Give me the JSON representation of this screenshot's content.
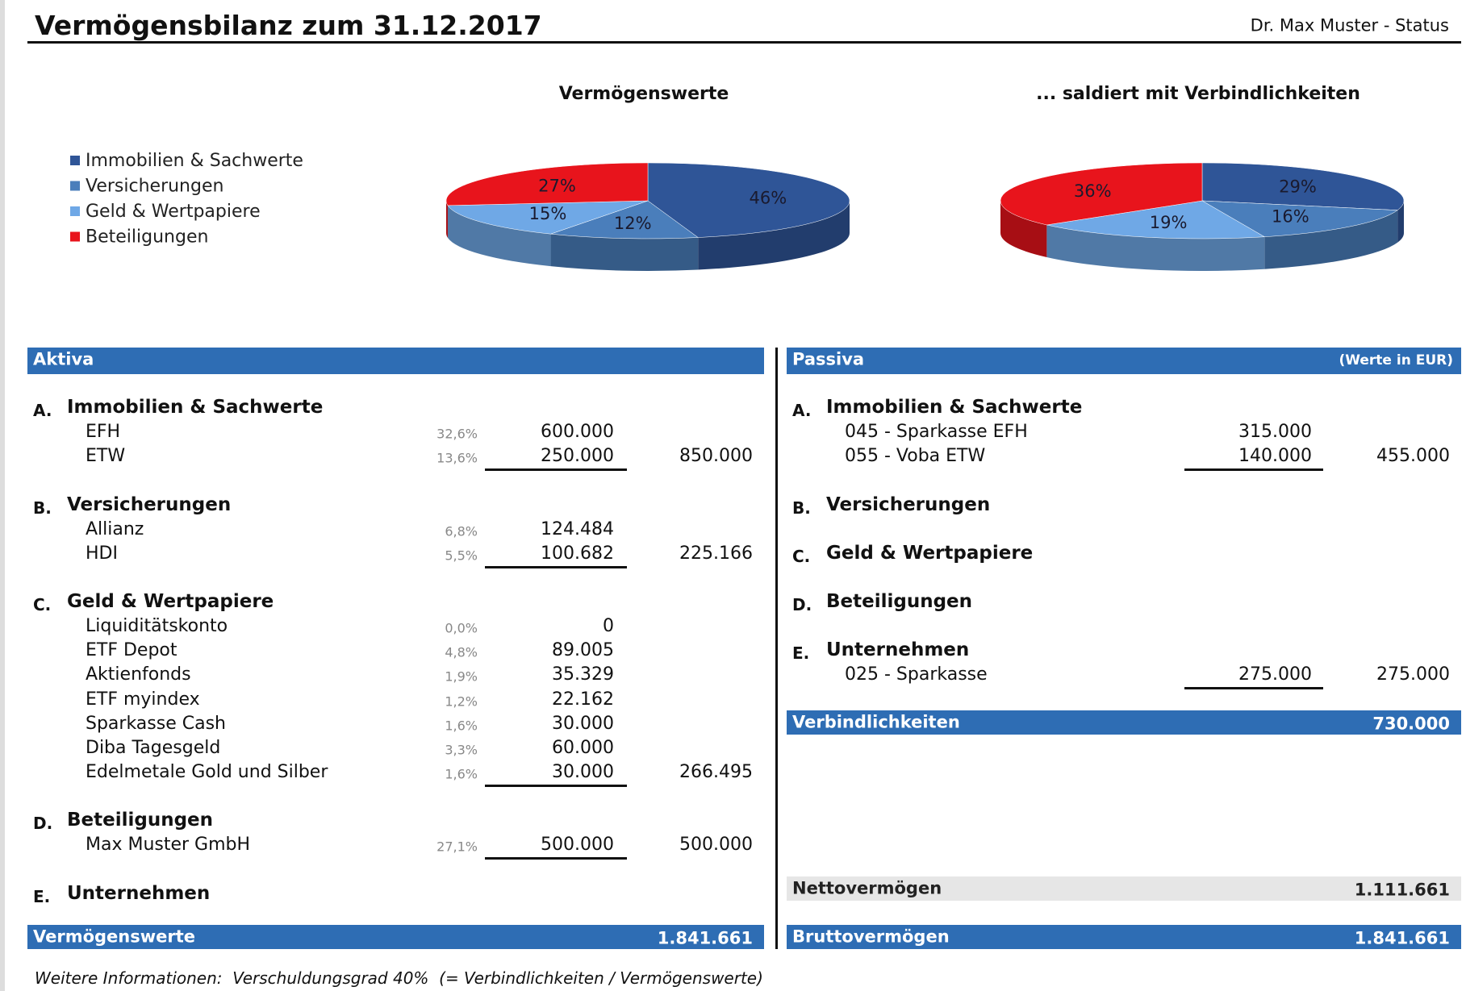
{
  "header": {
    "title": "Vermögensbilanz zum 31.12.2017",
    "subtitle": "Dr. Max Muster - Status"
  },
  "chart_data": [
    {
      "type": "pie",
      "title": "Vermögenswerte",
      "categories": [
        "Immobilien & Sachwerte",
        "Versicherungen",
        "Geld & Wertpapiere",
        "Beteiligungen"
      ],
      "values": [
        46,
        12,
        15,
        27
      ],
      "value_labels": [
        "46%",
        "12%",
        "15%",
        "27%"
      ],
      "colors": [
        "#2f5597",
        "#4a7ebb",
        "#6fa8e6",
        "#e8141c"
      ]
    },
    {
      "type": "pie",
      "title": "... saldiert mit Verbindlichkeiten",
      "values": [
        29,
        16,
        19,
        36
      ],
      "value_labels": [
        "29%",
        "16%",
        "19%",
        "36%"
      ],
      "colors": [
        "#2f5597",
        "#4a7ebb",
        "#6fa8e6",
        "#e8141c"
      ]
    }
  ],
  "aktiva": {
    "title": "Aktiva",
    "sections": [
      {
        "letter": "A.",
        "name": "Immobilien & Sachwerte",
        "items": [
          {
            "name": "EFH",
            "pct": "32,6%",
            "amount": "600.000"
          },
          {
            "name": "ETW",
            "pct": "13,6%",
            "amount": "250.000"
          }
        ],
        "total": "850.000"
      },
      {
        "letter": "B.",
        "name": "Versicherungen",
        "items": [
          {
            "name": "Allianz",
            "pct": "6,8%",
            "amount": "124.484"
          },
          {
            "name": "HDI",
            "pct": "5,5%",
            "amount": "100.682"
          }
        ],
        "total": "225.166"
      },
      {
        "letter": "C.",
        "name": "Geld & Wertpapiere",
        "items": [
          {
            "name": "Liquiditätskonto",
            "pct": "0,0%",
            "amount": "0"
          },
          {
            "name": "ETF Depot",
            "pct": "4,8%",
            "amount": "89.005"
          },
          {
            "name": "Aktienfonds",
            "pct": "1,9%",
            "amount": "35.329"
          },
          {
            "name": "ETF myindex",
            "pct": "1,2%",
            "amount": "22.162"
          },
          {
            "name": "Sparkasse Cash",
            "pct": "1,6%",
            "amount": "30.000"
          },
          {
            "name": "Diba Tagesgeld",
            "pct": "3,3%",
            "amount": "60.000"
          },
          {
            "name": "Edelmetale Gold und Silber",
            "pct": "1,6%",
            "amount": "30.000"
          }
        ],
        "total": "266.495"
      },
      {
        "letter": "D.",
        "name": "Beteiligungen",
        "items": [
          {
            "name": "Max Muster GmbH",
            "pct": "27,1%",
            "amount": "500.000"
          }
        ],
        "total": "500.000"
      },
      {
        "letter": "E.",
        "name": "Unternehmen",
        "items": []
      }
    ],
    "sum_label": "Vermögenswerte",
    "sum": "1.841.661"
  },
  "passiva": {
    "title": "Passiva",
    "unit": "(Werte in EUR)",
    "sections": [
      {
        "letter": "A.",
        "name": "Immobilien & Sachwerte",
        "items": [
          {
            "name": "045 - Sparkasse EFH",
            "amount": "315.000"
          },
          {
            "name": "055 - Voba ETW",
            "amount": "140.000"
          }
        ],
        "total": "455.000"
      },
      {
        "letter": "B.",
        "name": "Versicherungen",
        "items": []
      },
      {
        "letter": "C.",
        "name": "Geld & Wertpapiere",
        "items": []
      },
      {
        "letter": "D.",
        "name": "Beteiligungen",
        "items": []
      },
      {
        "letter": "E.",
        "name": "Unternehmen",
        "items": [
          {
            "name": "025 - Sparkasse",
            "amount": "275.000"
          }
        ],
        "total": "275.000"
      }
    ],
    "liabilities_label": "Verbindlichkeiten",
    "liabilities": "730.000",
    "net_label": "Nettovermögen",
    "net": "1.111.661",
    "gross_label": "Bruttovermögen",
    "gross": "1.841.661"
  },
  "footer": "Weitere Informationen:  Verschuldungsgrad 40%  (= Verbindlichkeiten / Vermögenswerte)"
}
